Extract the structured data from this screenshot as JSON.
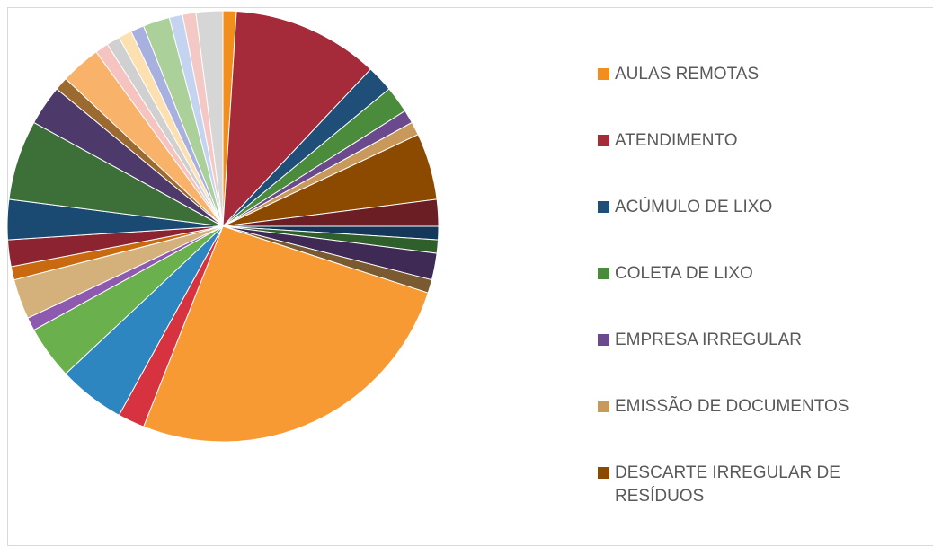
{
  "chart_data": {
    "type": "pie",
    "categories": [
      "AULAS REMOTAS",
      "ATENDIMENTO",
      "ACÚMULO DE LIXO",
      "COLETA DE LIXO",
      "EMPRESA IRREGULAR",
      "EMISSÃO DE DOCUMENTOS",
      "DESCARTE IRREGULAR DE RESÍDUOS",
      null,
      null,
      null,
      null,
      null,
      null,
      null,
      null,
      null,
      null,
      null,
      null,
      null,
      null,
      null,
      null,
      null,
      null,
      null,
      null,
      null,
      null,
      null,
      null,
      null,
      null
    ],
    "values": [
      1,
      11,
      2,
      2,
      1,
      1,
      5,
      2,
      1,
      1,
      2,
      1,
      26,
      2,
      5,
      4,
      1,
      3,
      1,
      2,
      3,
      6,
      3,
      1,
      3,
      1,
      1,
      1,
      1,
      2,
      1,
      1,
      2
    ],
    "colors": [
      "#f28e1c",
      "#a52a3a",
      "#1f4e79",
      "#4a8b3c",
      "#6a4a8c",
      "#c8995a",
      "#8b4a00",
      "#6b1e24",
      "#15385a",
      "#2f5f2a",
      "#3e2a55",
      "#7a5a30",
      "#f79a34",
      "#d6323f",
      "#2e86c1",
      "#6ab04c",
      "#8e5ab0",
      "#d4b07a",
      "#c96a10",
      "#8b2330",
      "#1a4a72",
      "#3d7038",
      "#4e3a6a",
      "#9a6a30",
      "#f9b26a",
      "#f6c4c0",
      "#d0d0d0",
      "#fde0b0",
      "#a8b0e0",
      "#acd09a",
      "#c4d4f0",
      "#f4c8c4",
      "#d6d6d6"
    ]
  }
}
